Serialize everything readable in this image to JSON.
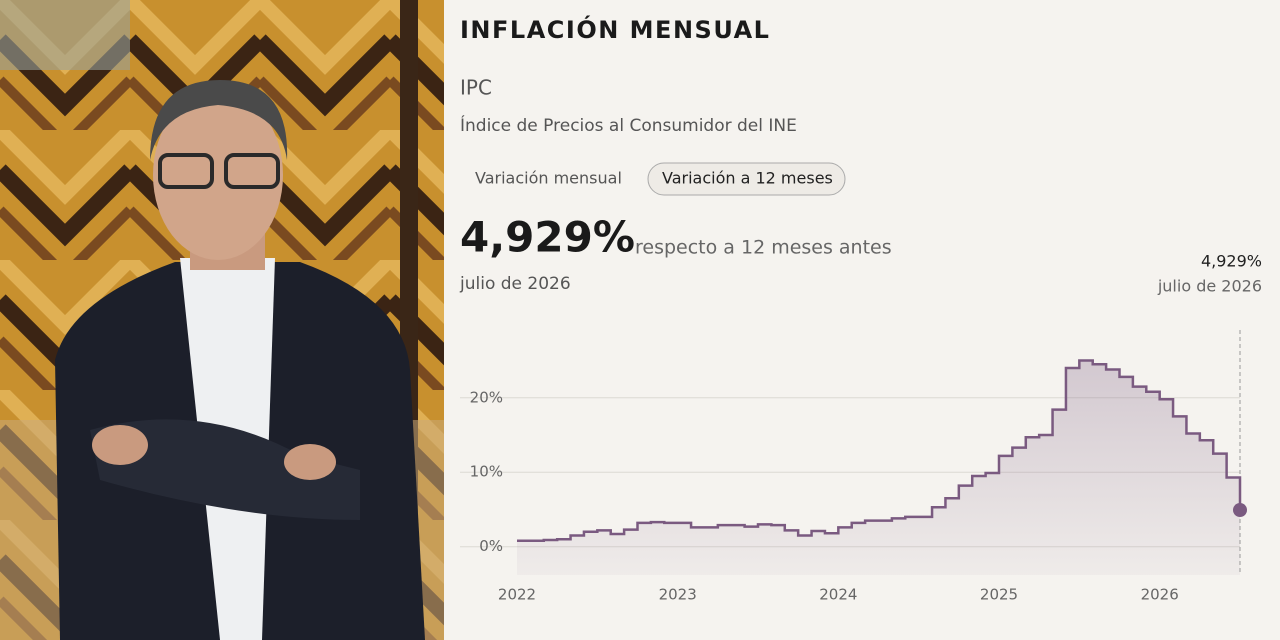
{
  "header": {
    "title": "INFLACIÓN MENSUAL",
    "index": "IPC",
    "subtitle": "Índice de Precios al Consumidor del INE"
  },
  "tabs": [
    "Variación mensual",
    "Variación a 12 meses"
  ],
  "headline": {
    "value": "4,929%",
    "caption": "respecto a 12 meses antes",
    "date": "julio de 2026"
  },
  "chart_data": {
    "type": "step",
    "x": [
      "2022-01",
      "2022-02",
      "2022-03",
      "2022-04",
      "2022-05",
      "2022-06",
      "2022-07",
      "2022-08",
      "2022-09",
      "2022-10",
      "2022-11",
      "2022-12",
      "2023-01",
      "2023-02",
      "2023-03",
      "2023-04",
      "2023-05",
      "2023-06",
      "2023-07",
      "2023-08",
      "2023-09",
      "2023-10",
      "2023-11",
      "2023-12",
      "2024-01",
      "2024-02",
      "2024-03",
      "2024-04",
      "2024-05",
      "2024-06",
      "2024-07",
      "2024-08",
      "2024-09",
      "2024-10",
      "2024-11",
      "2024-12",
      "2025-01",
      "2025-02",
      "2025-03",
      "2025-04",
      "2025-05",
      "2025-06",
      "2025-07",
      "2025-08",
      "2025-09",
      "2025-10",
      "2025-11",
      "2025-12",
      "2026-01",
      "2026-02",
      "2026-03",
      "2026-04",
      "2026-05",
      "2026-06",
      "2026-07"
    ],
    "series": [
      {
        "name": "IPC",
        "color": "#7a5a80",
        "values": [
          0.8,
          0.8,
          0.9,
          1.0,
          1.5,
          2.0,
          2.2,
          1.7,
          2.3,
          3.2,
          3.3,
          3.2,
          3.2,
          2.6,
          2.6,
          2.9,
          2.9,
          2.7,
          3.0,
          2.9,
          2.2,
          1.5,
          2.1,
          1.8,
          2.6,
          3.2,
          3.5,
          3.5,
          3.8,
          4.0,
          4.0,
          5.3,
          6.5,
          8.2,
          9.5,
          9.9,
          12.2,
          13.3,
          14.7,
          15.0,
          18.4,
          24.0,
          25.0,
          24.5,
          23.8,
          22.8,
          21.5,
          20.8,
          19.8,
          17.5,
          15.2,
          14.3,
          12.5,
          9.3,
          4.929
        ]
      }
    ],
    "tooltip": {
      "value": "4,929%",
      "date": "julio de 2026"
    },
    "xlim": [
      2022,
      2026.5
    ],
    "xticks": [
      2022,
      2023,
      2024,
      2025,
      2026
    ],
    "ylim": [
      -3.8,
      29.5
    ],
    "yticks": [
      {
        "value": 0,
        "label": "0%"
      },
      {
        "value": 10,
        "label": "10%"
      },
      {
        "value": 20,
        "label": "20%"
      }
    ],
    "grid": true
  }
}
